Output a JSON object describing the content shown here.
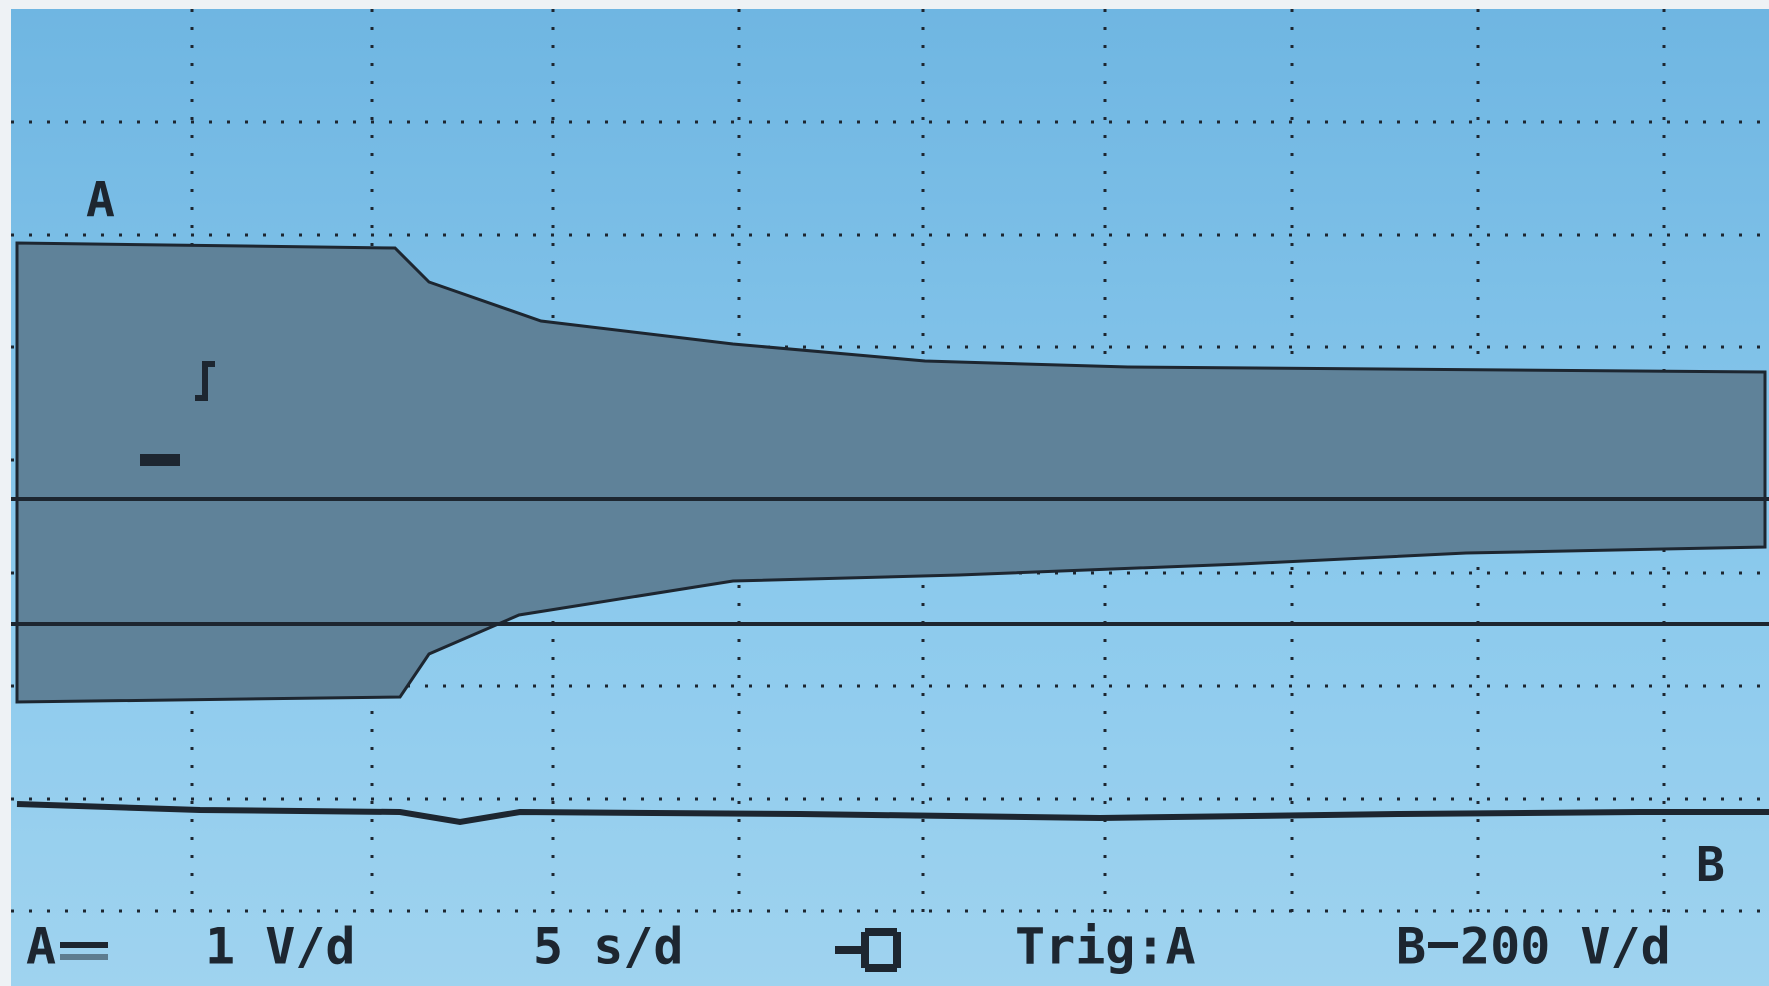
{
  "screen": {
    "channel_a_marker": "A",
    "channel_b_marker": "B"
  },
  "status_bar": {
    "channel_a": "A",
    "channel_a_scale": "1 V/d",
    "timebase": "5 s/d",
    "trigger": "Trig:A",
    "channel_b": "B",
    "channel_b_scale": "200 V/d"
  }
}
